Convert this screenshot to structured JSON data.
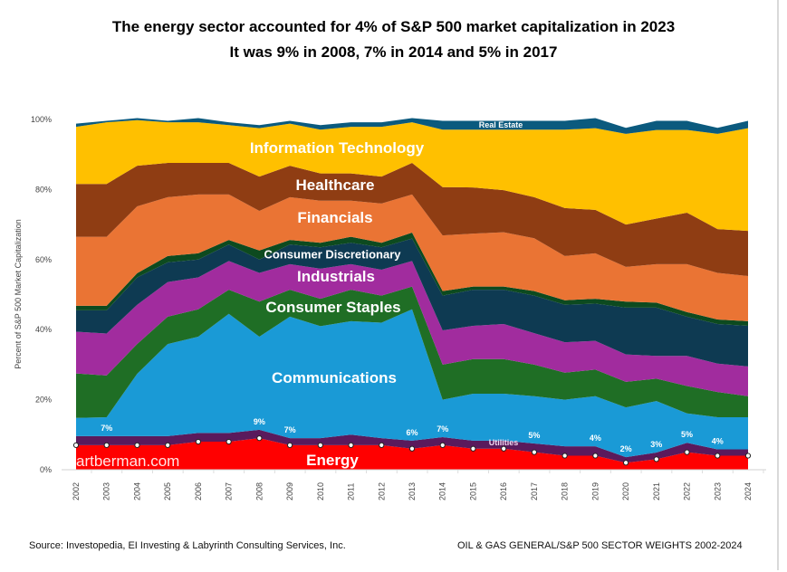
{
  "title_line1": "The energy sector accounted for 4% of S&P 500 market capitalization in 2023",
  "title_line2": "It was 9% in 2008, 7% in 2014 and 5% in 2017",
  "watermark": "artberman.com",
  "footer": {
    "source": "Source: Investopedia, EI Investing & Labyrinth Consulting Services, Inc.",
    "caption": "OIL & GAS GENERAL/S&P 500 SECTOR WEIGHTS 2002-2024"
  },
  "chart_data": {
    "type": "area",
    "stacked": true,
    "ylabel": "Percent of S&P 500 Market Capitalization",
    "xlabel": "",
    "ylim": [
      0,
      100
    ],
    "yticks": [
      "0%",
      "20%",
      "40%",
      "60%",
      "80%",
      "100%"
    ],
    "grid": false,
    "legend": "none (labels drawn on areas)",
    "x": [
      "2002",
      "2003",
      "2004",
      "2005",
      "2006",
      "2007",
      "2008",
      "2009",
      "2010",
      "2011",
      "2012",
      "2013",
      "2014",
      "2015",
      "2016",
      "2017",
      "2018",
      "2019",
      "2020",
      "2021",
      "2022",
      "2023",
      "2024"
    ],
    "series": [
      {
        "name": "Energy",
        "color": "#ff0000",
        "values": [
          7,
          7,
          7,
          7,
          8,
          8,
          9,
          7,
          7,
          7,
          7,
          6,
          7,
          6,
          6,
          5,
          4,
          4,
          2,
          3,
          5,
          4,
          4
        ]
      },
      {
        "name": "Utilities",
        "color": "#5a1a5c",
        "values": [
          2.6,
          2.6,
          2.6,
          2.6,
          2.5,
          2.5,
          2.4,
          2.0,
          2.0,
          3.0,
          2.0,
          2.3,
          2.3,
          2.3,
          2.3,
          2.5,
          2.7,
          2.7,
          1.6,
          1.9,
          2.7,
          1.8,
          1.8
        ]
      },
      {
        "name": "Communications",
        "color": "#1a9ad6",
        "values": [
          5.2,
          5.4,
          17.8,
          26.3,
          27.5,
          34,
          26.6,
          34.7,
          32,
          32.4,
          33,
          37.5,
          10.7,
          13.4,
          13.4,
          13.5,
          13.3,
          14.3,
          14.2,
          14.7,
          8.4,
          9.2,
          9.2
        ]
      },
      {
        "name": "Consumer Staples",
        "color": "#1f6e25",
        "values": [
          12.7,
          11.9,
          8.5,
          7.8,
          7.8,
          6.9,
          10,
          7.7,
          7.8,
          9,
          7.7,
          6.5,
          10,
          9.9,
          9.9,
          9,
          7.7,
          7.6,
          7.3,
          6.4,
          7.8,
          7.2,
          6
        ]
      },
      {
        "name": "Industrials",
        "color": "#a12c9e",
        "values": [
          11.9,
          12,
          11.2,
          9.9,
          9.1,
          8.2,
          8.2,
          7.3,
          8.6,
          7.3,
          7.4,
          7.3,
          9.8,
          9.5,
          10,
          9,
          8.7,
          8.2,
          7.8,
          6.5,
          8.6,
          8.1,
          8.5
        ]
      },
      {
        "name": "Consumer Discretionary",
        "color": "#0e3a52",
        "values": [
          6.1,
          6.6,
          7.8,
          5.6,
          5.1,
          4.7,
          3.8,
          5.6,
          6.1,
          6.1,
          6.4,
          6.4,
          9.9,
          10.3,
          9.8,
          10.7,
          10.7,
          10.6,
          13.4,
          13.8,
          11.2,
          11.3,
          11.6
        ]
      },
      {
        "color": "#0d4a1f",
        "values": [
          1.3,
          1.3,
          1.2,
          1.8,
          1.8,
          1.3,
          2.6,
          1.3,
          1.3,
          1.7,
          1.3,
          1.7,
          1.3,
          0.9,
          0.9,
          1.3,
          1.3,
          1.4,
          1.7,
          1.4,
          1.3,
          1.3,
          1.3
        ]
      },
      {
        "name": "Financials",
        "color": "#ea7434",
        "values": [
          19.7,
          19.7,
          19.1,
          16.8,
          16.8,
          13,
          11.3,
          12.2,
          12,
          10.3,
          11.2,
          10.9,
          15.9,
          15.1,
          15.5,
          15.1,
          12.6,
          13,
          9.9,
          11,
          13.7,
          13.3,
          12.9
        ]
      },
      {
        "name": "Healthcare",
        "color": "#8f3d13",
        "values": [
          15.1,
          15.1,
          11.6,
          9.8,
          9,
          9,
          9.8,
          9,
          7.8,
          7.8,
          7.7,
          9,
          13.8,
          13.2,
          12,
          11.7,
          13.7,
          12.4,
          12.1,
          13,
          14.7,
          12.5,
          12.9
        ]
      },
      {
        "name": "Information Technology",
        "color": "#ffc000",
        "values": [
          16.3,
          17.6,
          13,
          11.6,
          11.6,
          10.8,
          13.8,
          12,
          12.5,
          13.3,
          14.2,
          11.6,
          16.4,
          16.5,
          17.3,
          19.3,
          22.4,
          23.3,
          25.9,
          25.3,
          23.6,
          27.2,
          29.3
        ]
      },
      {
        "name": "Real Estate",
        "color": "#0b5a7e",
        "values": [
          0.9,
          0.4,
          0.6,
          0.4,
          1.2,
          0.8,
          0.9,
          0.8,
          1.3,
          1.3,
          1.3,
          1.2,
          2.5,
          2.5,
          2.5,
          2.5,
          2.5,
          2.9,
          1.7,
          2.6,
          2.6,
          1.7,
          2.1
        ]
      }
    ],
    "energy_data_labels": [
      {
        "x": "2003",
        "label": "7%"
      },
      {
        "x": "2008",
        "label": "9%"
      },
      {
        "x": "2009",
        "label": "7%"
      },
      {
        "x": "2013",
        "label": "6%"
      },
      {
        "x": "2014",
        "label": "7%"
      },
      {
        "x": "2017",
        "label": "5%"
      },
      {
        "x": "2019",
        "label": "4%"
      },
      {
        "x": "2020",
        "label": "2%"
      },
      {
        "x": "2021",
        "label": "3%"
      },
      {
        "x": "2022",
        "label": "5%"
      },
      {
        "x": "2023",
        "label": "4%"
      }
    ]
  }
}
